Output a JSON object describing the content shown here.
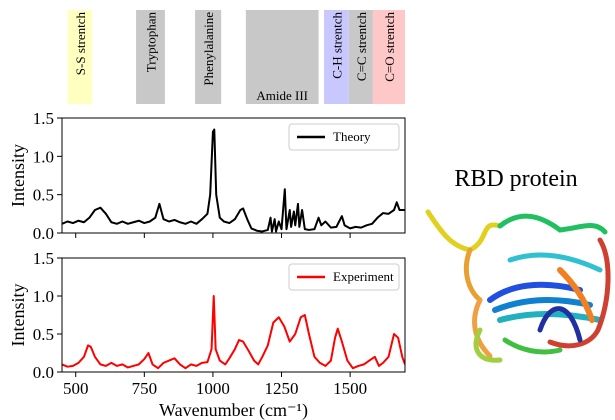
{
  "chart_data": [
    {
      "type": "line",
      "ylabel": "Intensity",
      "xlim": [
        450,
        1700
      ],
      "ylim": [
        0,
        1.5
      ],
      "xticks": [
        500,
        750,
        1000,
        1250,
        1500
      ],
      "yticks": [
        {
          "value": 0,
          "label": "0.0"
        },
        0.5,
        {
          "value": 1,
          "label": "1.0"
        },
        1.5
      ],
      "legend": "upper right",
      "bands": [
        {
          "label": "S-S strentch",
          "range": [
            470,
            560
          ],
          "color": "#ffffc0"
        },
        {
          "label": "Tryptophan",
          "range": [
            720,
            825
          ],
          "color": "#c8c8c8"
        },
        {
          "label": "Phenylalanine",
          "range": [
            935,
            1030
          ],
          "color": "#c8c8c8"
        },
        {
          "label": "Amide III",
          "range": [
            1120,
            1385
          ],
          "color": "#c8c8c8"
        },
        {
          "label": "C-H strentch",
          "range": [
            1405,
            1495
          ],
          "color": "#c8c8ff"
        },
        {
          "label": "C=C strentch",
          "range": [
            1495,
            1583
          ],
          "color": "#c8c8c8"
        },
        {
          "label": "C=O strentch",
          "range": [
            1583,
            1700
          ],
          "color": "#ffc8c8"
        }
      ],
      "x": [
        450,
        470,
        490,
        510,
        530,
        550,
        570,
        590,
        610,
        630,
        650,
        670,
        690,
        710,
        730,
        750,
        770,
        790,
        805,
        820,
        840,
        860,
        880,
        900,
        920,
        940,
        960,
        980,
        990,
        1000,
        1005,
        1012,
        1025,
        1040,
        1060,
        1080,
        1100,
        1110,
        1125,
        1140,
        1160,
        1180,
        1200,
        1210,
        1215,
        1225,
        1230,
        1240,
        1250,
        1262,
        1268,
        1280,
        1285,
        1295,
        1300,
        1310,
        1315,
        1325,
        1335,
        1350,
        1370,
        1385,
        1395,
        1410,
        1430,
        1450,
        1470,
        1480,
        1500,
        1520,
        1540,
        1560,
        1580,
        1600,
        1620,
        1640,
        1660,
        1670,
        1680,
        1700
      ],
      "series": [
        {
          "name": "Theory",
          "color": "#000000",
          "values": [
            0.12,
            0.15,
            0.13,
            0.16,
            0.14,
            0.2,
            0.3,
            0.33,
            0.25,
            0.14,
            0.12,
            0.15,
            0.12,
            0.14,
            0.16,
            0.13,
            0.15,
            0.2,
            0.38,
            0.18,
            0.15,
            0.17,
            0.14,
            0.12,
            0.15,
            0.12,
            0.18,
            0.25,
            0.5,
            1.32,
            1.35,
            0.5,
            0.2,
            0.15,
            0.13,
            0.18,
            0.3,
            0.32,
            0.18,
            0.06,
            0.03,
            0.02,
            0.04,
            0.2,
            0.02,
            0.18,
            0.02,
            0.15,
            0.05,
            0.57,
            0.05,
            0.3,
            0.08,
            0.28,
            0.1,
            0.38,
            0.08,
            0.3,
            0.05,
            0.04,
            0.05,
            0.2,
            0.1,
            0.15,
            0.07,
            0.08,
            0.22,
            0.1,
            0.06,
            0.08,
            0.07,
            0.1,
            0.12,
            0.2,
            0.26,
            0.25,
            0.3,
            0.4,
            0.3,
            0.3
          ]
        }
      ]
    },
    {
      "type": "line",
      "ylabel": "Intensity",
      "xlabel": "Wavenumber (cm⁻¹)",
      "xlim": [
        450,
        1700
      ],
      "ylim": [
        0,
        1.5
      ],
      "xticks": [
        500,
        750,
        1000,
        1250,
        1500
      ],
      "yticks": [
        {
          "value": 0,
          "label": "0.0"
        },
        0.5,
        {
          "value": 1,
          "label": "1.0"
        },
        1.5
      ],
      "legend": "upper right",
      "x": [
        450,
        470,
        490,
        510,
        530,
        545,
        555,
        570,
        590,
        610,
        630,
        650,
        670,
        690,
        710,
        730,
        750,
        765,
        780,
        800,
        820,
        840,
        860,
        880,
        900,
        920,
        940,
        960,
        980,
        995,
        1003,
        1010,
        1025,
        1045,
        1060,
        1080,
        1095,
        1110,
        1130,
        1150,
        1165,
        1180,
        1200,
        1220,
        1240,
        1260,
        1280,
        1300,
        1320,
        1335,
        1350,
        1370,
        1390,
        1410,
        1430,
        1445,
        1455,
        1470,
        1490,
        1510,
        1530,
        1550,
        1570,
        1590,
        1605,
        1620,
        1640,
        1660,
        1675,
        1690,
        1700
      ],
      "series": [
        {
          "name": "Experiment",
          "color": "#ff0000",
          "values": [
            0.1,
            0.07,
            0.08,
            0.12,
            0.2,
            0.35,
            0.33,
            0.2,
            0.1,
            0.08,
            0.12,
            0.08,
            0.1,
            0.06,
            0.08,
            0.1,
            0.17,
            0.25,
            0.1,
            0.05,
            0.12,
            0.15,
            0.18,
            0.1,
            0.05,
            0.1,
            0.08,
            0.12,
            0.13,
            0.3,
            1.0,
            0.3,
            0.15,
            0.1,
            0.18,
            0.3,
            0.42,
            0.4,
            0.28,
            0.15,
            0.1,
            0.2,
            0.35,
            0.65,
            0.72,
            0.6,
            0.4,
            0.5,
            0.72,
            0.75,
            0.5,
            0.2,
            0.12,
            0.08,
            0.15,
            0.45,
            0.57,
            0.4,
            0.15,
            0.05,
            0.08,
            0.1,
            0.15,
            0.2,
            0.08,
            0.12,
            0.2,
            0.5,
            0.45,
            0.2,
            0.1
          ]
        }
      ]
    }
  ],
  "figure_label": "RBD protein"
}
